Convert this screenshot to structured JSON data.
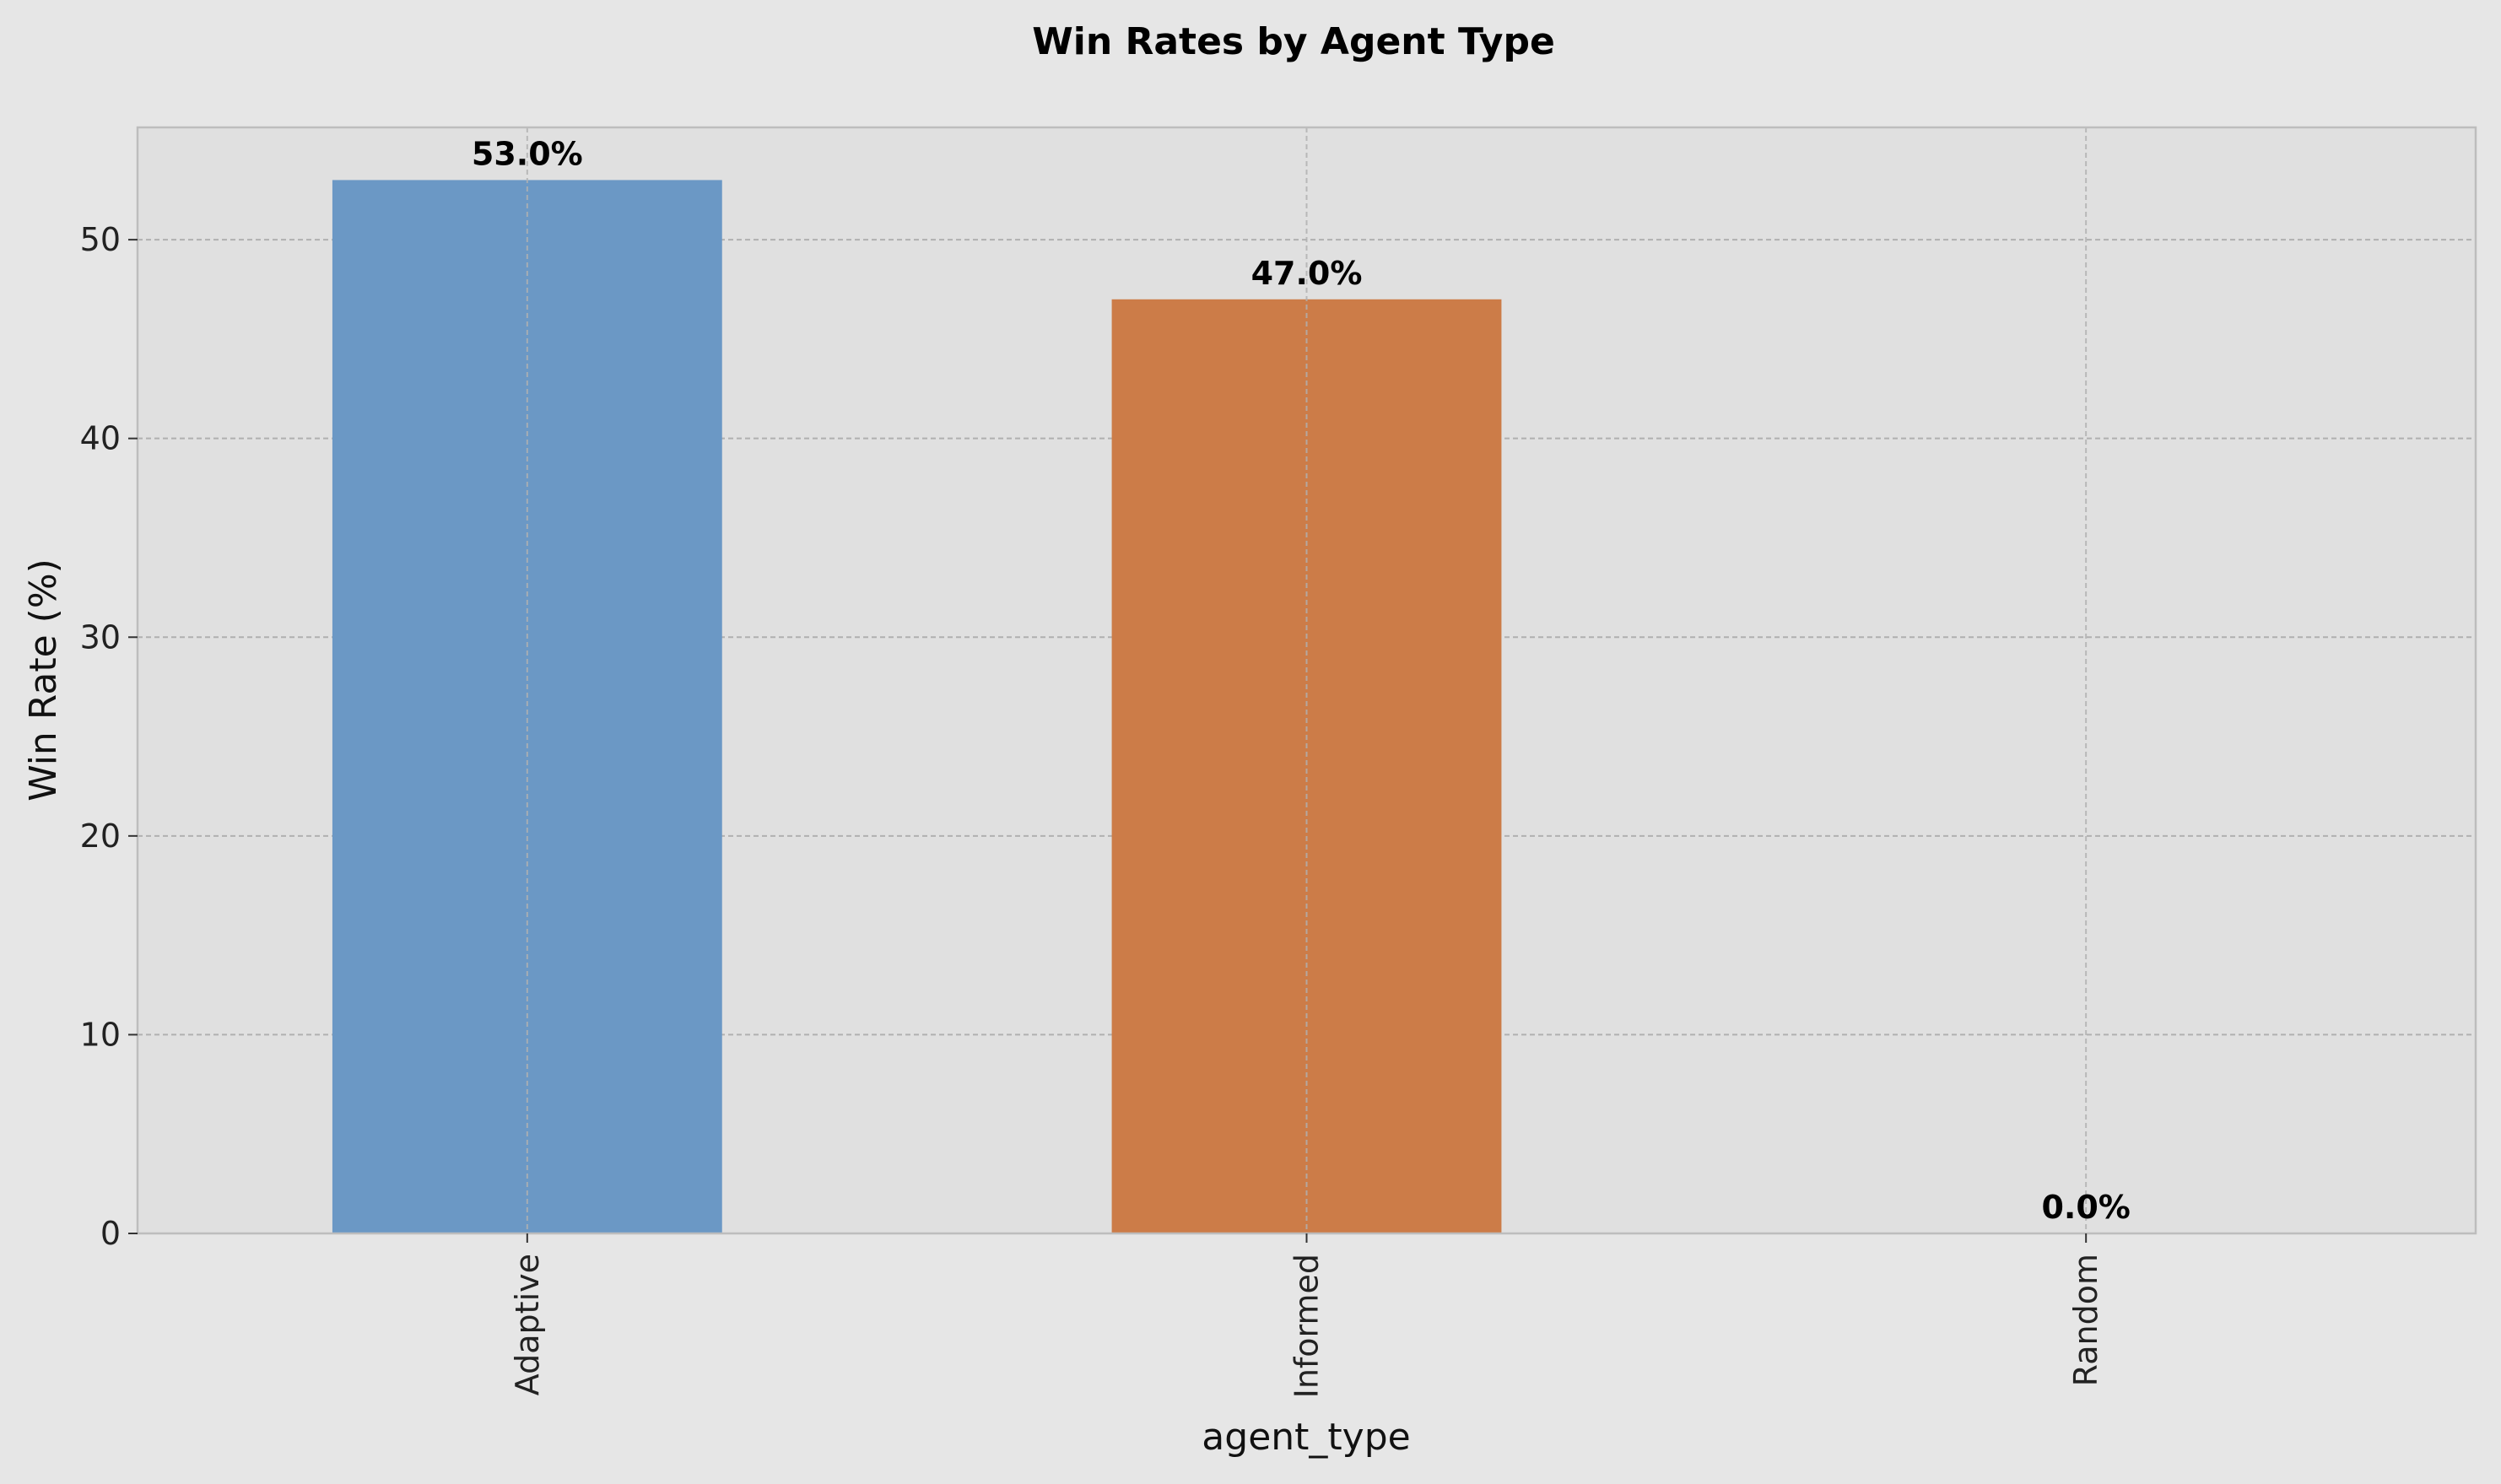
{
  "chart_data": {
    "type": "bar",
    "title": "Win Rates by Agent Type",
    "xlabel": "agent_type",
    "ylabel": "Win Rate (%)",
    "categories": [
      "Adaptive",
      "Informed",
      "Random"
    ],
    "values": [
      53.0,
      47.0,
      0.0
    ],
    "data_labels": [
      "53.0%",
      "47.0%",
      "0.0%"
    ],
    "ylim": [
      0,
      55.65
    ],
    "yticks": [
      0,
      10,
      20,
      30,
      40,
      50
    ],
    "grid": true,
    "colors": {
      "bars": [
        "#6b98c5",
        "#cc7c48",
        "#9bb58a"
      ],
      "figure_bg": "#e6e6e6",
      "axes_bg": "#e0e0e0",
      "spine": "#bdbdbd",
      "grid": "#b0b0b0"
    }
  }
}
